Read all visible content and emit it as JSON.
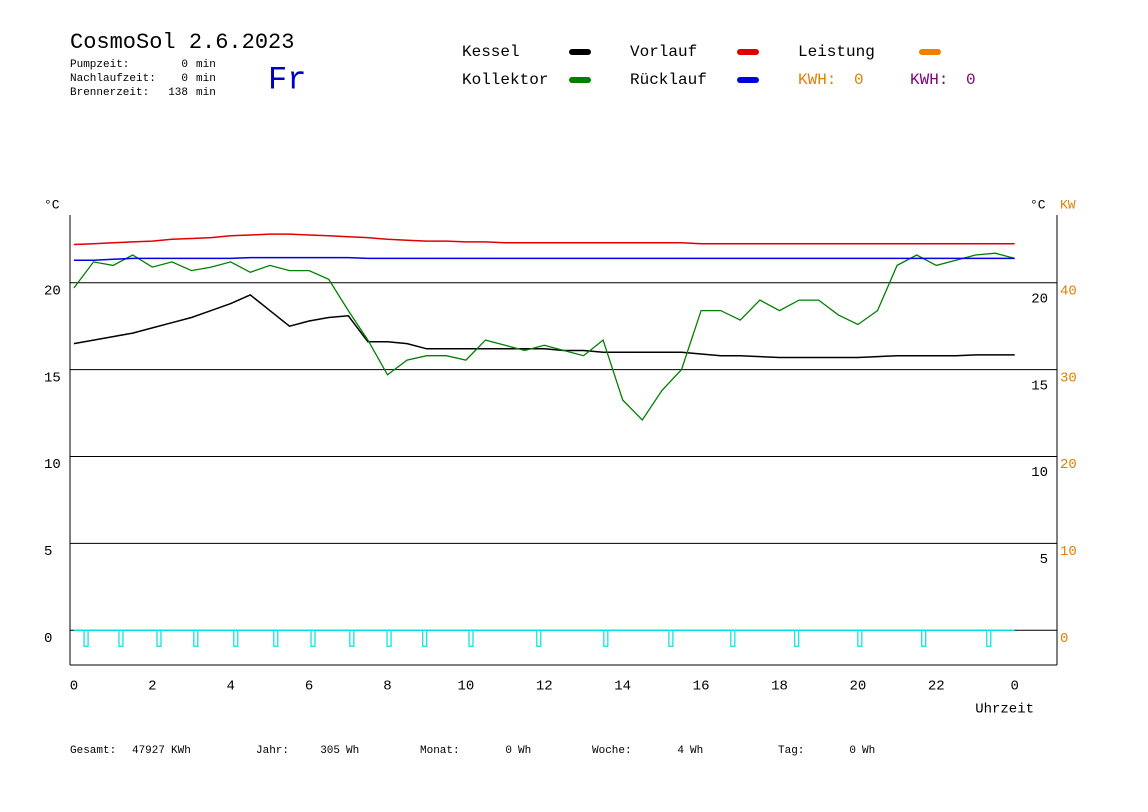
{
  "chart_data": {
    "type": "line",
    "title": "CosmoSol 2.6.2023",
    "day": "Fr",
    "info": [
      {
        "label": "Pumpzeit:",
        "value": 0,
        "unit": "min"
      },
      {
        "label": "Nachlaufzeit:",
        "value": 0,
        "unit": "min"
      },
      {
        "label": "Brennerzeit:",
        "value": 138,
        "unit": "min"
      }
    ],
    "kwh": [
      {
        "label": "KWH:",
        "value": 0,
        "color": "#e08000"
      },
      {
        "label": "KWH:",
        "value": 0,
        "color": "#800080"
      }
    ],
    "y_label": "°C",
    "y2_label": "°C",
    "y2_unit": "KW",
    "x_label": "Uhrzeit",
    "x": [
      0,
      0.5,
      1,
      1.5,
      2,
      2.5,
      3,
      3.5,
      4,
      4.5,
      5,
      5.5,
      6,
      6.5,
      7,
      7.5,
      8,
      8.5,
      9,
      9.5,
      10,
      10.5,
      11,
      11.5,
      12,
      12.5,
      13,
      13.5,
      14,
      14.5,
      15,
      15.5,
      16,
      16.5,
      17,
      17.5,
      18,
      18.5,
      19,
      19.5,
      20,
      20.5,
      21,
      21.5,
      22,
      22.5,
      23,
      23.5,
      24
    ],
    "series": [
      {
        "name": "Kessel",
        "color": "#000000",
        "values": [
          16.5,
          16.7,
          16.9,
          17.1,
          17.4,
          17.7,
          18.0,
          18.4,
          18.8,
          19.3,
          18.4,
          17.5,
          17.8,
          18.0,
          18.1,
          16.6,
          16.6,
          16.5,
          16.2,
          16.2,
          16.2,
          16.2,
          16.2,
          16.2,
          16.2,
          16.1,
          16.1,
          16.0,
          16.0,
          16.0,
          16.0,
          16.0,
          15.9,
          15.8,
          15.8,
          15.75,
          15.7,
          15.7,
          15.7,
          15.7,
          15.7,
          15.75,
          15.8,
          15.8,
          15.8,
          15.8,
          15.85,
          15.85,
          15.85
        ]
      },
      {
        "name": "Kollektor",
        "color": "#008000",
        "values": [
          19.7,
          21.2,
          21.0,
          21.6,
          20.9,
          21.2,
          20.7,
          20.9,
          21.2,
          20.6,
          21.0,
          20.7,
          20.7,
          20.2,
          18.4,
          16.7,
          14.7,
          15.55,
          15.8,
          15.8,
          15.55,
          16.7,
          16.4,
          16.1,
          16.4,
          16.1,
          15.8,
          16.7,
          13.25,
          12.1,
          13.8,
          15.0,
          18.4,
          18.4,
          17.85,
          19.0,
          18.4,
          19.0,
          19.0,
          18.15,
          17.6,
          18.4,
          21.0,
          21.6,
          21.0,
          21.3,
          21.6,
          21.7,
          21.4
        ]
      },
      {
        "name": "Vorlauf",
        "color": "#e00000",
        "values": [
          22.2,
          22.25,
          22.3,
          22.35,
          22.4,
          22.5,
          22.55,
          22.6,
          22.7,
          22.75,
          22.8,
          22.8,
          22.75,
          22.7,
          22.65,
          22.6,
          22.5,
          22.45,
          22.4,
          22.4,
          22.35,
          22.35,
          22.3,
          22.3,
          22.3,
          22.3,
          22.3,
          22.3,
          22.3,
          22.3,
          22.3,
          22.3,
          22.25,
          22.25,
          22.25,
          22.25,
          22.25,
          22.25,
          22.25,
          22.25,
          22.25,
          22.25,
          22.25,
          22.25,
          22.25,
          22.25,
          22.25,
          22.25,
          22.25
        ]
      },
      {
        "name": "Rücklauf",
        "color": "#0000e0",
        "values": [
          21.3,
          21.3,
          21.35,
          21.4,
          21.4,
          21.4,
          21.4,
          21.4,
          21.4,
          21.45,
          21.45,
          21.45,
          21.45,
          21.45,
          21.45,
          21.4,
          21.4,
          21.4,
          21.4,
          21.4,
          21.4,
          21.4,
          21.4,
          21.4,
          21.4,
          21.4,
          21.4,
          21.4,
          21.4,
          21.4,
          21.4,
          21.4,
          21.4,
          21.4,
          21.4,
          21.4,
          21.4,
          21.4,
          21.4,
          21.4,
          21.4,
          21.4,
          21.4,
          21.4,
          21.4,
          21.4,
          21.4,
          21.4,
          21.4
        ]
      },
      {
        "name": "Leistung",
        "color": "#f08000",
        "x": [],
        "values": []
      },
      {
        "color": "#00e0e0",
        "x": [
          0,
          24
        ],
        "values": [
          0,
          0
        ],
        "pulse_x": [
          0.31,
          1.2,
          2.17,
          3.11,
          4.13,
          5.15,
          6.1,
          7.09,
          8.04,
          8.95,
          10.13,
          11.86,
          13.57,
          15.23,
          16.81,
          18.44,
          20.05,
          21.68,
          23.34
        ]
      }
    ],
    "xlim": [
      -0.1,
      25.08
    ],
    "xticks": [
      0,
      2,
      4,
      6,
      8,
      10,
      12,
      14,
      16,
      18,
      20,
      22,
      {
        "value": 24,
        "label": "0"
      }
    ],
    "ylim": [
      -2,
      23.9
    ],
    "yticks": [
      0,
      5,
      10,
      15,
      20
    ],
    "y2lim": [
      -4,
      47.8
    ],
    "y2ticks": [
      0,
      10,
      20,
      30,
      40
    ],
    "y2color": "#e08000",
    "grid": true,
    "totals": [
      {
        "label": "Gesamt:",
        "value": 47927,
        "unit": "KWh"
      },
      {
        "label": "Jahr:",
        "value": 305,
        "unit": "Wh"
      },
      {
        "label": "Monat:",
        "value": 0,
        "unit": "Wh"
      },
      {
        "label": "Woche:",
        "value": 4,
        "unit": "Wh"
      },
      {
        "label": "Tag:",
        "value": 0,
        "unit": "Wh"
      }
    ]
  }
}
